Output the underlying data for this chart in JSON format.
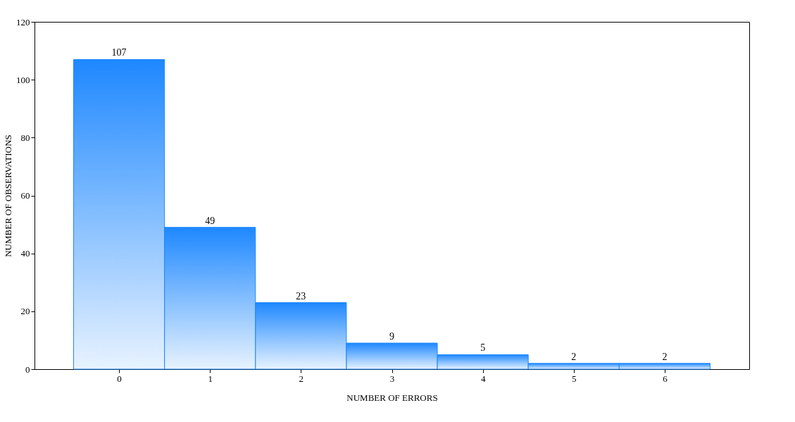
{
  "chart_data": {
    "type": "bar",
    "xlabel": "NUMBER OF ERRORS",
    "ylabel": "NUMBER OF OBSERVATIONS",
    "categories": [
      "0",
      "1",
      "2",
      "3",
      "4",
      "5",
      "6"
    ],
    "values": [
      107,
      49,
      23,
      9,
      5,
      2,
      2
    ],
    "color": "#1e88ff",
    "ylim": [
      0,
      120
    ],
    "yticks": [
      0,
      20,
      40,
      60,
      80,
      100,
      120
    ],
    "grid": false,
    "data_labels": true
  }
}
